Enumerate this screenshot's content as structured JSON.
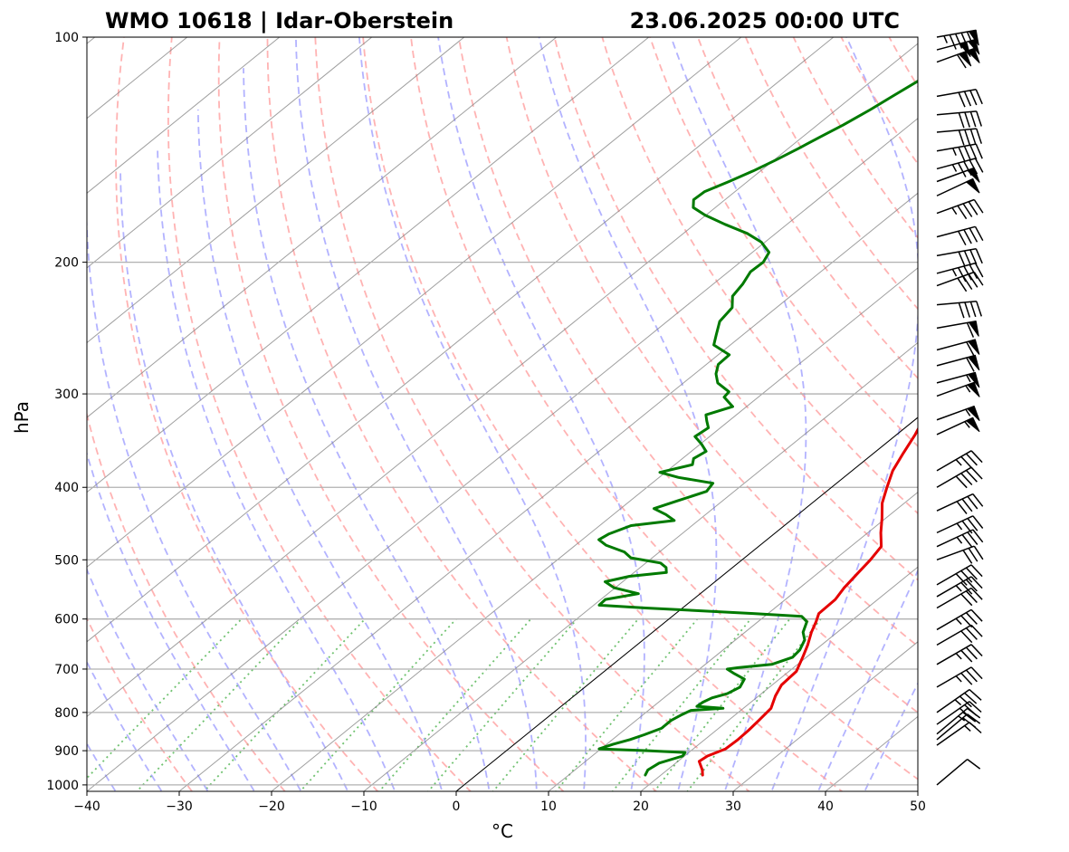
{
  "header": {
    "station": "WMO 10618 | Idar-Oberstein",
    "datetime": "23.06.2025 00:00 UTC"
  },
  "colors": {
    "temperature": "#e50000",
    "dewpoint": "#007a00",
    "dry_adiabat": "#ff9a9a",
    "moist_adiabat": "#9a9aff",
    "mixing_ratio": "#4cb34c",
    "isotherm": "#7f7f7f",
    "isobar": "#b0b0b0",
    "zero_isotherm": "#000000"
  },
  "chart_data": {
    "type": "line",
    "diagram": "skew-T log-p",
    "xlabel": "°C",
    "ylabel": "hPa",
    "xlim": [
      -40,
      50
    ],
    "ylim": [
      1020,
      100
    ],
    "y_scale": "log",
    "grid": true,
    "x_ticks": [
      "−40",
      "−30",
      "−20",
      "−10",
      "0",
      "10",
      "20",
      "30",
      "40",
      "50"
    ],
    "x_tick_values": [
      -40,
      -30,
      -20,
      -10,
      0,
      10,
      20,
      30,
      40,
      50
    ],
    "y_ticks": [
      "100",
      "200",
      "300",
      "400",
      "500",
      "600",
      "700",
      "800",
      "900",
      "1000"
    ],
    "y_tick_values": [
      100,
      200,
      300,
      400,
      500,
      600,
      700,
      800,
      900,
      1000
    ],
    "series": [
      {
        "color": "#e50000",
        "points": [
          [
            970,
            24.5
          ],
          [
            955,
            23.8
          ],
          [
            930,
            22.3
          ],
          [
            915,
            22.5
          ],
          [
            895,
            23.5
          ],
          [
            870,
            23.6
          ],
          [
            845,
            23.5
          ],
          [
            820,
            23.3
          ],
          [
            790,
            23.0
          ],
          [
            760,
            21.8
          ],
          [
            735,
            21.0
          ],
          [
            705,
            20.8
          ],
          [
            675,
            19.6
          ],
          [
            650,
            18.5
          ],
          [
            625,
            17.2
          ],
          [
            605,
            16.3
          ],
          [
            590,
            15.5
          ],
          [
            565,
            15.4
          ],
          [
            545,
            14.8
          ],
          [
            525,
            14.4
          ],
          [
            500,
            13.9
          ],
          [
            480,
            13.3
          ],
          [
            460,
            11.4
          ],
          [
            440,
            9.6
          ],
          [
            420,
            7.6
          ],
          [
            400,
            6.0
          ],
          [
            380,
            4.4
          ],
          [
            360,
            3.2
          ],
          [
            340,
            2.0
          ],
          [
            325,
            0.9
          ],
          [
            310,
            -0.3
          ],
          [
            295,
            -2.0
          ],
          [
            280,
            -3.8
          ],
          [
            265,
            -5.1
          ],
          [
            250,
            -6.5
          ],
          [
            235,
            -7.9
          ],
          [
            220,
            -8.6
          ],
          [
            205,
            -9.8
          ],
          [
            195,
            -10.6
          ],
          [
            187,
            -10.5
          ],
          [
            180,
            -9.8
          ],
          [
            175,
            -8.5
          ],
          [
            170,
            -7.0
          ],
          [
            165,
            -5.8
          ],
          [
            160,
            -4.5
          ],
          [
            155,
            -2.5
          ],
          [
            150,
            -1.4
          ],
          [
            147,
            -0.5
          ],
          [
            145,
            1.0
          ],
          [
            140,
            2.5
          ],
          [
            135,
            3.8
          ],
          [
            130,
            3.9
          ],
          [
            125,
            3.4
          ],
          [
            120,
            3.4
          ],
          [
            115,
            4.1
          ],
          [
            110,
            4.5
          ],
          [
            105,
            5.2
          ],
          [
            102,
            5.8
          ],
          [
            100,
            5.5
          ]
        ]
      },
      {
        "color": "#007a00",
        "points": [
          [
            970,
            18.3
          ],
          [
            955,
            17.9
          ],
          [
            935,
            18.2
          ],
          [
            915,
            19.8
          ],
          [
            905,
            19.6
          ],
          [
            900,
            15.3
          ],
          [
            895,
            9.8
          ],
          [
            882,
            10.7
          ],
          [
            870,
            11.9
          ],
          [
            857,
            12.8
          ],
          [
            840,
            13.8
          ],
          [
            820,
            13.8
          ],
          [
            805,
            14.2
          ],
          [
            795,
            14.6
          ],
          [
            790,
            17.8
          ],
          [
            785,
            14.7
          ],
          [
            775,
            14.8
          ],
          [
            765,
            15.2
          ],
          [
            755,
            16.3
          ],
          [
            740,
            16.8
          ],
          [
            722,
            16.2
          ],
          [
            710,
            14.4
          ],
          [
            700,
            13.0
          ],
          [
            697,
            14.0
          ],
          [
            690,
            17.2
          ],
          [
            675,
            18.5
          ],
          [
            660,
            18.3
          ],
          [
            640,
            17.5
          ],
          [
            625,
            16.3
          ],
          [
            605,
            15.3
          ],
          [
            595,
            14.0
          ],
          [
            590,
            8.4
          ],
          [
            580,
            -4.0
          ],
          [
            575,
            -9.4
          ],
          [
            565,
            -9.5
          ],
          [
            555,
            -6.7
          ],
          [
            545,
            -10.1
          ],
          [
            535,
            -11.9
          ],
          [
            526,
            -10.0
          ],
          [
            520,
            -6.5
          ],
          [
            512,
            -7.2
          ],
          [
            505,
            -8.4
          ],
          [
            497,
            -12.3
          ],
          [
            488,
            -13.8
          ],
          [
            478,
            -16.7
          ],
          [
            470,
            -18.2
          ],
          [
            462,
            -17.9
          ],
          [
            450,
            -16.6
          ],
          [
            443,
            -12.6
          ],
          [
            435,
            -14.3
          ],
          [
            427,
            -16.4
          ],
          [
            417,
            -14.9
          ],
          [
            405,
            -13.0
          ],
          [
            395,
            -13.4
          ],
          [
            388,
            -17.9
          ],
          [
            382,
            -20.6
          ],
          [
            373,
            -18.1
          ],
          [
            366,
            -18.8
          ],
          [
            358,
            -18.4
          ],
          [
            350,
            -19.9
          ],
          [
            342,
            -21.6
          ],
          [
            333,
            -21.3
          ],
          [
            326,
            -22.4
          ],
          [
            320,
            -23.3
          ],
          [
            312,
            -21.5
          ],
          [
            303,
            -23.7
          ],
          [
            298,
            -23.9
          ],
          [
            290,
            -26.3
          ],
          [
            282,
            -27.7
          ],
          [
            274,
            -28.7
          ],
          [
            266,
            -28.8
          ],
          [
            258,
            -31.8
          ],
          [
            250,
            -32.9
          ],
          [
            240,
            -34.3
          ],
          [
            230,
            -34.8
          ],
          [
            222,
            -36.3
          ],
          [
            214,
            -36.8
          ],
          [
            206,
            -37.6
          ],
          [
            200,
            -37.5
          ],
          [
            194,
            -38.2
          ],
          [
            188,
            -40.4
          ],
          [
            183,
            -43.1
          ],
          [
            178,
            -46.7
          ],
          [
            173,
            -50.1
          ],
          [
            169,
            -52.4
          ],
          [
            165,
            -53.4
          ],
          [
            161,
            -53.3
          ],
          [
            156,
            -52.0
          ],
          [
            151,
            -50.8
          ],
          [
            146,
            -49.8
          ],
          [
            141,
            -48.9
          ],
          [
            136,
            -48.1
          ],
          [
            131,
            -47.2
          ],
          [
            125,
            -46.3
          ],
          [
            120,
            -45.7
          ],
          [
            114,
            -44.9
          ],
          [
            109,
            -44.0
          ],
          [
            104,
            -43.4
          ],
          [
            100,
            -43.2
          ]
        ]
      }
    ],
    "wind_barbs": [
      {
        "p": 100,
        "dir": 260,
        "spd": 95
      },
      {
        "p": 104,
        "dir": 255,
        "spd": 100
      },
      {
        "p": 108,
        "dir": 250,
        "spd": 110
      },
      {
        "p": 120,
        "dir": 260,
        "spd": 40
      },
      {
        "p": 127,
        "dir": 265,
        "spd": 40
      },
      {
        "p": 134,
        "dir": 265,
        "spd": 40
      },
      {
        "p": 142,
        "dir": 260,
        "spd": 45
      },
      {
        "p": 150,
        "dir": 255,
        "spd": 45
      },
      {
        "p": 156,
        "dir": 250,
        "spd": 50
      },
      {
        "p": 163,
        "dir": 245,
        "spd": 50
      },
      {
        "p": 172,
        "dir": 250,
        "spd": 45
      },
      {
        "p": 185,
        "dir": 255,
        "spd": 40
      },
      {
        "p": 196,
        "dir": 260,
        "spd": 40
      },
      {
        "p": 207,
        "dir": 255,
        "spd": 45
      },
      {
        "p": 215,
        "dir": 250,
        "spd": 40
      },
      {
        "p": 228,
        "dir": 265,
        "spd": 40
      },
      {
        "p": 245,
        "dir": 260,
        "spd": 60
      },
      {
        "p": 262,
        "dir": 255,
        "spd": 60
      },
      {
        "p": 275,
        "dir": 255,
        "spd": 60
      },
      {
        "p": 290,
        "dir": 255,
        "spd": 55
      },
      {
        "p": 302,
        "dir": 250,
        "spd": 55
      },
      {
        "p": 325,
        "dir": 250,
        "spd": 55
      },
      {
        "p": 340,
        "dir": 245,
        "spd": 55
      },
      {
        "p": 380,
        "dir": 240,
        "spd": 35
      },
      {
        "p": 400,
        "dir": 240,
        "spd": 40
      },
      {
        "p": 430,
        "dir": 245,
        "spd": 40
      },
      {
        "p": 460,
        "dir": 245,
        "spd": 35
      },
      {
        "p": 480,
        "dir": 245,
        "spd": 35
      },
      {
        "p": 500,
        "dir": 250,
        "spd": 30
      },
      {
        "p": 540,
        "dir": 240,
        "spd": 40
      },
      {
        "p": 560,
        "dir": 240,
        "spd": 35
      },
      {
        "p": 580,
        "dir": 240,
        "spd": 30
      },
      {
        "p": 620,
        "dir": 240,
        "spd": 35
      },
      {
        "p": 650,
        "dir": 240,
        "spd": 30
      },
      {
        "p": 690,
        "dir": 240,
        "spd": 35
      },
      {
        "p": 740,
        "dir": 240,
        "spd": 35
      },
      {
        "p": 800,
        "dir": 235,
        "spd": 35
      },
      {
        "p": 830,
        "dir": 235,
        "spd": 30
      },
      {
        "p": 855,
        "dir": 230,
        "spd": 25
      },
      {
        "p": 870,
        "dir": 230,
        "spd": 20
      },
      {
        "p": 885,
        "dir": 235,
        "spd": 15
      },
      {
        "p": 1000,
        "dir": 230,
        "spd": 10
      }
    ]
  }
}
